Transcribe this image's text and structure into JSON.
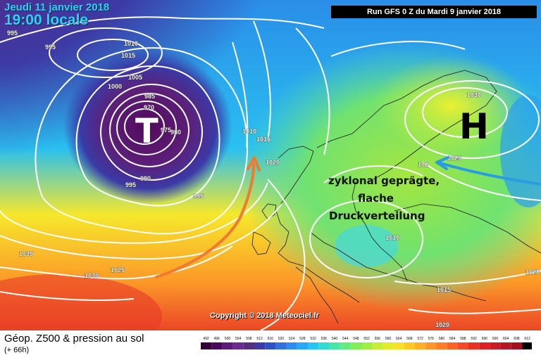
{
  "header": {
    "date": "Jeudi 11 janvier 2018",
    "time": "19:00 locale",
    "run": "Run GFS 0 Z du Mardi 9 janvier 2018"
  },
  "copyright": "Copyright © 2018 Meteociel.fr",
  "footer": {
    "title": "Géop. Z500 & pression au sol",
    "subtitle": "(+ 66h)"
  },
  "pressure_systems": {
    "high": "H",
    "low": "T"
  },
  "annotation": [
    "zyklonal geprägte,",
    "flache",
    "Druckverteilung"
  ],
  "isobar_labels": [
    "995",
    "1010",
    "995",
    "1015",
    "1005",
    "1000",
    "985",
    "970",
    "975",
    "980",
    "990",
    "995",
    "995",
    "1010",
    "1015",
    "1020",
    "1035",
    "1030",
    "1025",
    "1010",
    "1030",
    "1025",
    "1020",
    "1015",
    "1020",
    "1020",
    "102"
  ],
  "scale": {
    "values": [
      "492",
      "496",
      "500",
      "504",
      "508",
      "512",
      "516",
      "520",
      "524",
      "528",
      "532",
      "536",
      "540",
      "544",
      "548",
      "552",
      "556",
      "560",
      "564",
      "568",
      "572",
      "576",
      "580",
      "584",
      "588",
      "592",
      "596",
      "600",
      "604",
      "608",
      "612"
    ],
    "colors": [
      "#33003a",
      "#4a0a5c",
      "#5c1a7a",
      "#6a2a90",
      "#54307a",
      "#3c3aa8",
      "#2f50c8",
      "#3070e0",
      "#2e8cf0",
      "#2aa8f8",
      "#28c6f2",
      "#30dcd0",
      "#46e6a8",
      "#62ec80",
      "#80ee58",
      "#a0ee40",
      "#c4ee32",
      "#e2ea2a",
      "#f8e028",
      "#fcc828",
      "#fcb028",
      "#fc9628",
      "#fc7c28",
      "#fc6228",
      "#f44828",
      "#e83024",
      "#dc2024",
      "#c81c24",
      "#b41824",
      "#a01420",
      "#000000"
    ]
  },
  "colors": {
    "header_text": "#29d3ff",
    "run_box_bg": "#000000",
    "isobar": "#ffffff",
    "arrow_warm": "#f07a30",
    "arrow_cold": "#2a9de0"
  }
}
